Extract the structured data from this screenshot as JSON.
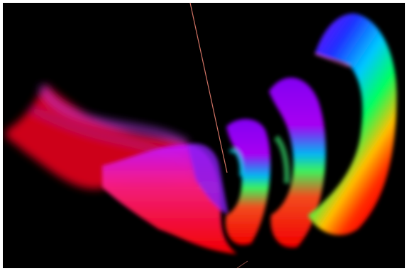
{
  "scene": {
    "background_color": "#000000",
    "frame_color": "#ffffff",
    "axis_color": "#f08070",
    "color_ramp": [
      "#ff0000",
      "#ff00ff",
      "#8000ff",
      "#0000ff",
      "#00ffff",
      "#00ff00",
      "#ffff00"
    ]
  }
}
